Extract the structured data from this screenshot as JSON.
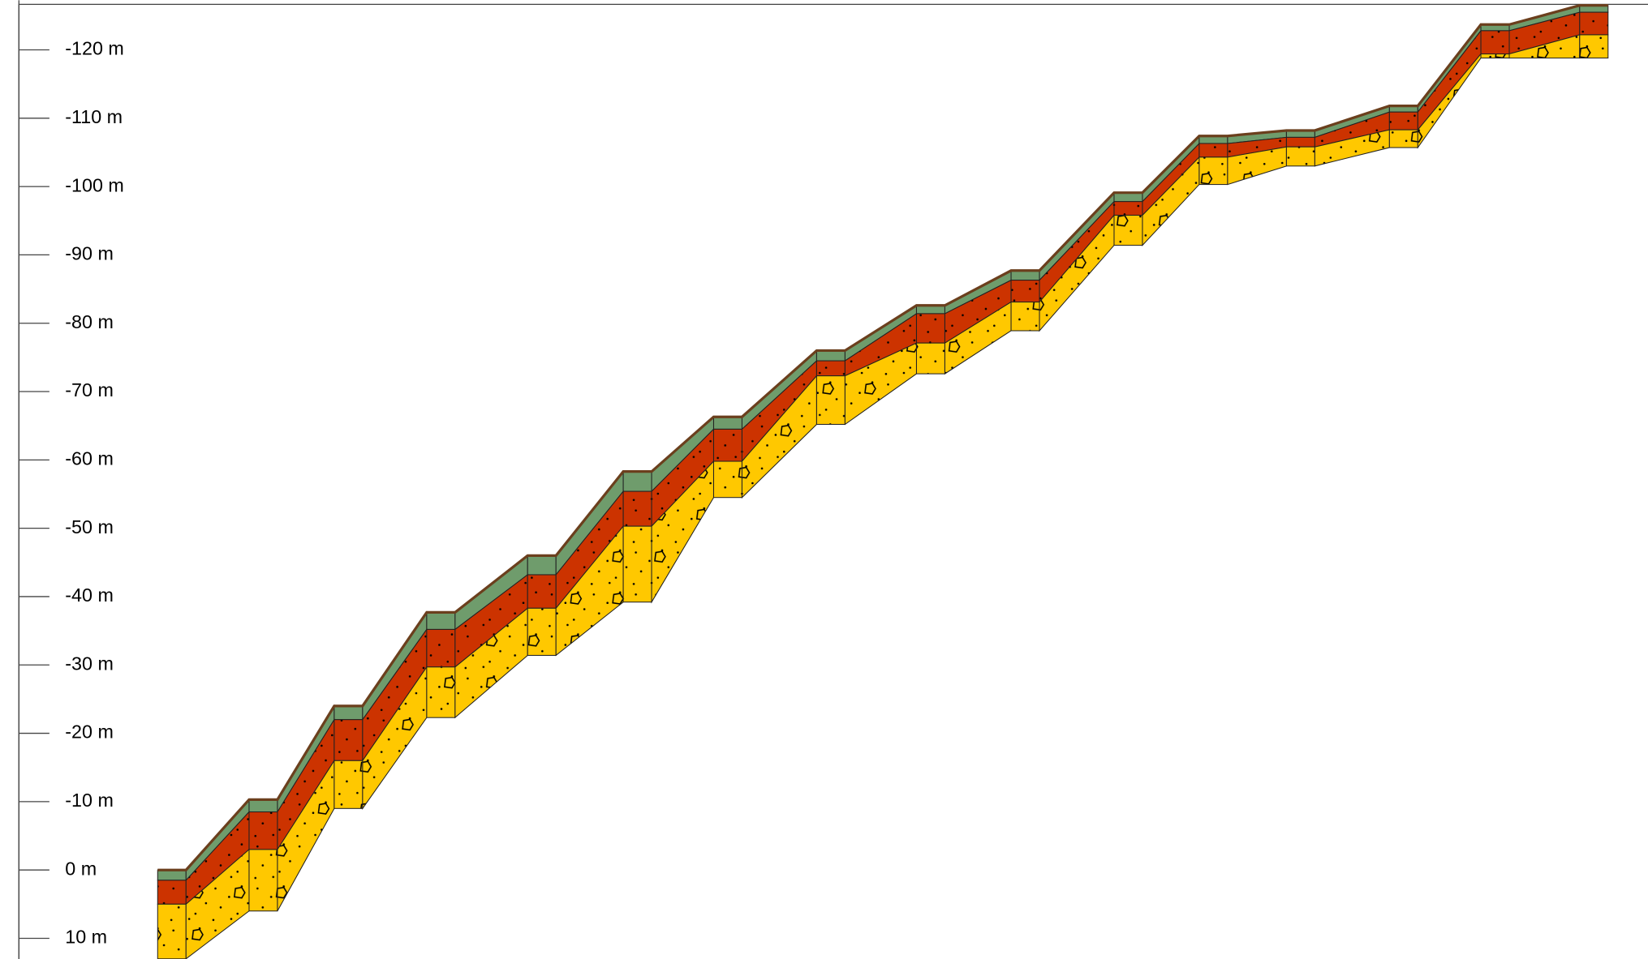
{
  "chart_data": {
    "type": "cross-section",
    "yticks": [
      {
        "value": 10,
        "label": "10 m"
      },
      {
        "value": 0,
        "label": "0 m"
      },
      {
        "value": -10,
        "label": "-10 m"
      },
      {
        "value": -20,
        "label": "-20 m"
      },
      {
        "value": -30,
        "label": "-30 m"
      },
      {
        "value": -40,
        "label": "-40 m"
      },
      {
        "value": -50,
        "label": "-50 m"
      },
      {
        "value": -60,
        "label": "-60 m"
      },
      {
        "value": -70,
        "label": "-70 m"
      },
      {
        "value": -80,
        "label": "-80 m"
      },
      {
        "value": -90,
        "label": "-90 m"
      },
      {
        "value": -100,
        "label": "-100 m"
      },
      {
        "value": -110,
        "label": "-110 m"
      },
      {
        "value": -120,
        "label": "-120 m"
      }
    ],
    "ylim": [
      13,
      -126.5
    ],
    "xlim": [
      0,
      1568
    ],
    "x": [
      150,
      237,
      318,
      406,
      502,
      593,
      679,
      777,
      872,
      962,
      1060,
      1141,
      1224,
      1322,
      1409,
      1503
    ],
    "top": [
      0,
      -10.3,
      -24,
      -37.7,
      -46,
      -58.3,
      -66.3,
      -76,
      -82.6,
      -87.7,
      -99.1,
      -107.4,
      -108.2,
      -111.8,
      -123.7,
      -126.5
    ],
    "series": [
      {
        "color": "#6f9c6c",
        "values": [
          1.5,
          -8.5,
          -22,
          -35.2,
          -43.2,
          -55.4,
          -64.5,
          -74.5,
          -81.4,
          -86.3,
          -97.8,
          -106.3,
          -107.2,
          -110.9,
          -122.8,
          -125.5
        ]
      },
      {
        "color": "#cc3300",
        "values": [
          5,
          -3,
          -16,
          -29.7,
          -38.3,
          -50.3,
          -59.8,
          -72.3,
          -77.1,
          -83.1,
          -95.8,
          -104.3,
          -105.8,
          -108.3,
          -119.4,
          -122.2
        ]
      },
      {
        "color": "#ffc800",
        "values": [
          13,
          6,
          -9,
          -22.3,
          -31.4,
          -39.2,
          -54.5,
          -65.2,
          -72.6,
          -78.9,
          -91.4,
          -100.3,
          -103,
          -105.7,
          -118.8,
          -118.8
        ]
      }
    ]
  }
}
